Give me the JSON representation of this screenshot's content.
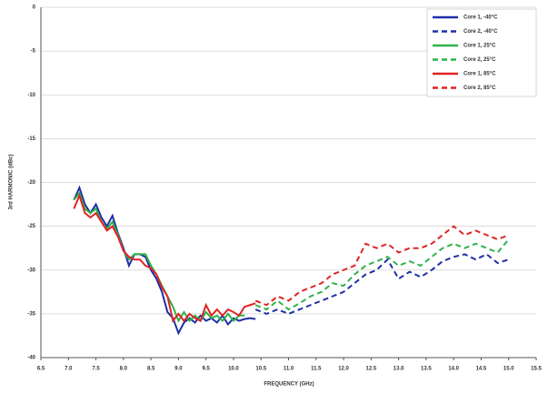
{
  "chart_data": {
    "type": "line",
    "ylabel": "3rd HARMONIC (dBc)",
    "xlabel": "FREQUENCY (GHz)",
    "xlim": [
      6.5,
      15.5
    ],
    "xticks": [
      6.5,
      {
        "value": 7,
        "label": "7.0"
      },
      7.5,
      {
        "value": 8,
        "label": "8.0"
      },
      8.5,
      {
        "value": 9,
        "label": "9.0"
      },
      9.5,
      {
        "value": 10,
        "label": "10.0"
      },
      10.5,
      {
        "value": 11,
        "label": "11.0"
      },
      11.5,
      {
        "value": 12,
        "label": "12.0"
      },
      12.5,
      {
        "value": 13,
        "label": "13.0"
      },
      13.5,
      {
        "value": 14,
        "label": "14.0"
      },
      14.5,
      {
        "value": 15,
        "label": "15.0"
      },
      15.5
    ],
    "ylim": [
      -40,
      0
    ],
    "yticks": [
      0,
      -5,
      -10,
      -15,
      -20,
      -25,
      -30,
      -35,
      -40
    ],
    "grid": true,
    "legend": "top-right",
    "series": [
      {
        "name": "Core 1, -40°C",
        "color": "#1f2fa8",
        "dash": false,
        "x": [
          7.1,
          7.2,
          7.3,
          7.4,
          7.5,
          7.6,
          7.7,
          7.8,
          7.9,
          8.0,
          8.1,
          8.2,
          8.3,
          8.4,
          8.5,
          8.6,
          8.7,
          8.8,
          8.9,
          9.0,
          9.1,
          9.2,
          9.3,
          9.4,
          9.5,
          9.6,
          9.7,
          9.8,
          9.9,
          10.0,
          10.1,
          10.2,
          10.3,
          10.4
        ],
        "values": [
          -22,
          -20.6,
          -22.5,
          -23.5,
          -22.5,
          -24,
          -25,
          -23.8,
          -25.8,
          -27.5,
          -29.5,
          -28.2,
          -28.2,
          -28.5,
          -30,
          -31,
          -32.5,
          -34.8,
          -35.5,
          -37.2,
          -36,
          -35.5,
          -36,
          -35.2,
          -35.8,
          -35.5,
          -36,
          -35.2,
          -36.2,
          -35.5,
          -35.8,
          -35.6,
          -35.5,
          -35.6
        ]
      },
      {
        "name": "Core 2, -40°C",
        "color": "#1f2fa8",
        "dash": true,
        "x": [
          10.4,
          10.6,
          10.8,
          11.0,
          11.2,
          11.4,
          11.6,
          11.8,
          12.0,
          12.2,
          12.4,
          12.6,
          12.8,
          13.0,
          13.2,
          13.4,
          13.6,
          13.8,
          14.0,
          14.2,
          14.4,
          14.6,
          14.8,
          15.0
        ],
        "values": [
          -34.5,
          -35,
          -34.5,
          -35,
          -34.5,
          -34,
          -33.5,
          -33,
          -32.5,
          -31.5,
          -30.5,
          -30,
          -28.8,
          -31,
          -30.2,
          -30.8,
          -30,
          -29,
          -28.5,
          -28.2,
          -28.8,
          -28.2,
          -29.2,
          -28.8
        ]
      },
      {
        "name": "Core 1, 25°C",
        "color": "#2db34a",
        "dash": false,
        "x": [
          7.1,
          7.2,
          7.3,
          7.4,
          7.5,
          7.6,
          7.7,
          7.8,
          7.9,
          8.0,
          8.1,
          8.2,
          8.3,
          8.4,
          8.5,
          8.6,
          8.7,
          8.8,
          8.9,
          9.0,
          9.1,
          9.2,
          9.3,
          9.4,
          9.5,
          9.6,
          9.7,
          9.8,
          9.9,
          10.0,
          10.1,
          10.2
        ],
        "values": [
          -22,
          -21.2,
          -23,
          -23.5,
          -23,
          -24.5,
          -25.3,
          -24.5,
          -26,
          -27.8,
          -28.8,
          -28.2,
          -28.2,
          -28.2,
          -29.5,
          -30.5,
          -31.8,
          -33,
          -34.2,
          -35.8,
          -34.8,
          -35.8,
          -35.2,
          -35.8,
          -34.8,
          -35.5,
          -35.2,
          -35.8,
          -35,
          -35.8,
          -35.2,
          -35.2
        ]
      },
      {
        "name": "Core 2, 25°C",
        "color": "#2db34a",
        "dash": true,
        "x": [
          10.4,
          10.6,
          10.8,
          11.0,
          11.2,
          11.4,
          11.6,
          11.8,
          12.0,
          12.2,
          12.4,
          12.6,
          12.8,
          13.0,
          13.2,
          13.4,
          13.6,
          13.8,
          14.0,
          14.2,
          14.4,
          14.6,
          14.8,
          15.0
        ],
        "values": [
          -34,
          -34.5,
          -33.5,
          -34.5,
          -33.8,
          -33,
          -32.5,
          -31.5,
          -31.8,
          -30.5,
          -29.5,
          -29,
          -28.5,
          -29.5,
          -29,
          -29.5,
          -28.5,
          -27.5,
          -27,
          -27.5,
          -27,
          -27.5,
          -28,
          -26.5
        ]
      },
      {
        "name": "Core 1, 85°C",
        "color": "#e02424",
        "dash": false,
        "x": [
          7.1,
          7.2,
          7.3,
          7.4,
          7.5,
          7.6,
          7.7,
          7.8,
          7.9,
          8.0,
          8.1,
          8.2,
          8.3,
          8.4,
          8.5,
          8.6,
          8.7,
          8.8,
          8.9,
          9.0,
          9.1,
          9.2,
          9.3,
          9.4,
          9.5,
          9.6,
          9.7,
          9.8,
          9.9,
          10.0,
          10.1,
          10.2,
          10.3,
          10.4
        ],
        "values": [
          -23,
          -21.5,
          -23.5,
          -24,
          -23.5,
          -24.5,
          -25.5,
          -25,
          -26.2,
          -27.8,
          -28.5,
          -28.8,
          -28.8,
          -29.5,
          -29.8,
          -30.5,
          -32,
          -33,
          -35.8,
          -35,
          -35.8,
          -35,
          -35.5,
          -35.8,
          -34,
          -35.2,
          -34.5,
          -35.2,
          -34.5,
          -34.8,
          -35.2,
          -34.2,
          -34,
          -33.8
        ]
      },
      {
        "name": "Core 2, 85°C",
        "color": "#e02424",
        "dash": true,
        "x": [
          10.4,
          10.6,
          10.8,
          11.0,
          11.2,
          11.4,
          11.6,
          11.8,
          12.0,
          12.2,
          12.4,
          12.6,
          12.8,
          13.0,
          13.2,
          13.4,
          13.6,
          13.8,
          14.0,
          14.2,
          14.4,
          14.6,
          14.8,
          15.0
        ],
        "values": [
          -33.5,
          -34,
          -33,
          -33.5,
          -32.5,
          -32,
          -31.5,
          -30.5,
          -30,
          -29.5,
          -27,
          -27.5,
          -27,
          -28,
          -27.5,
          -27.5,
          -27,
          -26,
          -25,
          -26,
          -25.5,
          -26,
          -26.5,
          -26
        ]
      }
    ]
  }
}
